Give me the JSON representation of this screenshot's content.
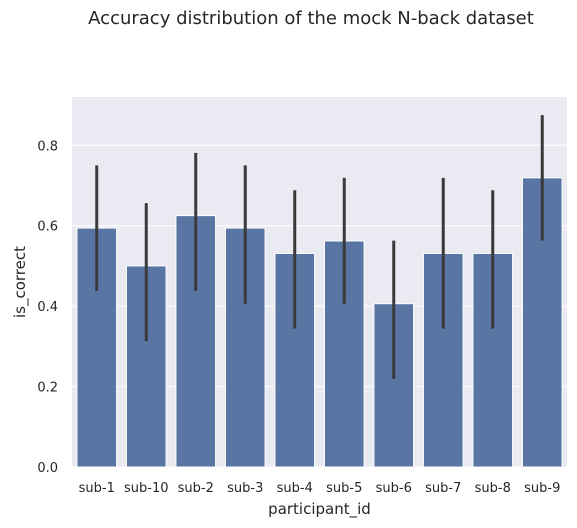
{
  "chart_data": {
    "type": "bar",
    "title": "Accuracy distribution of the mock N-back dataset",
    "xlabel": "participant_id",
    "ylabel": "is_correct",
    "categories": [
      "sub-1",
      "sub-10",
      "sub-2",
      "sub-3",
      "sub-4",
      "sub-5",
      "sub-6",
      "sub-7",
      "sub-8",
      "sub-9"
    ],
    "values": [
      0.594,
      0.5,
      0.625,
      0.594,
      0.531,
      0.562,
      0.406,
      0.531,
      0.531,
      0.719
    ],
    "error_low": [
      0.438,
      0.313,
      0.438,
      0.406,
      0.344,
      0.406,
      0.219,
      0.344,
      0.344,
      0.563
    ],
    "error_high": [
      0.75,
      0.656,
      0.781,
      0.75,
      0.688,
      0.719,
      0.563,
      0.719,
      0.688,
      0.875
    ],
    "ylim": [
      0,
      0.92
    ],
    "yticks": [
      0.0,
      0.2,
      0.4,
      0.6,
      0.8
    ],
    "ytick_labels": [
      "0.0",
      "0.2",
      "0.4",
      "0.6",
      "0.8"
    ],
    "grid": true,
    "colors": {
      "bar": "#5975a4",
      "error_bar": "#3a3a3a",
      "plot_background": "#eaeaf2",
      "grid": "#ffffff"
    }
  }
}
